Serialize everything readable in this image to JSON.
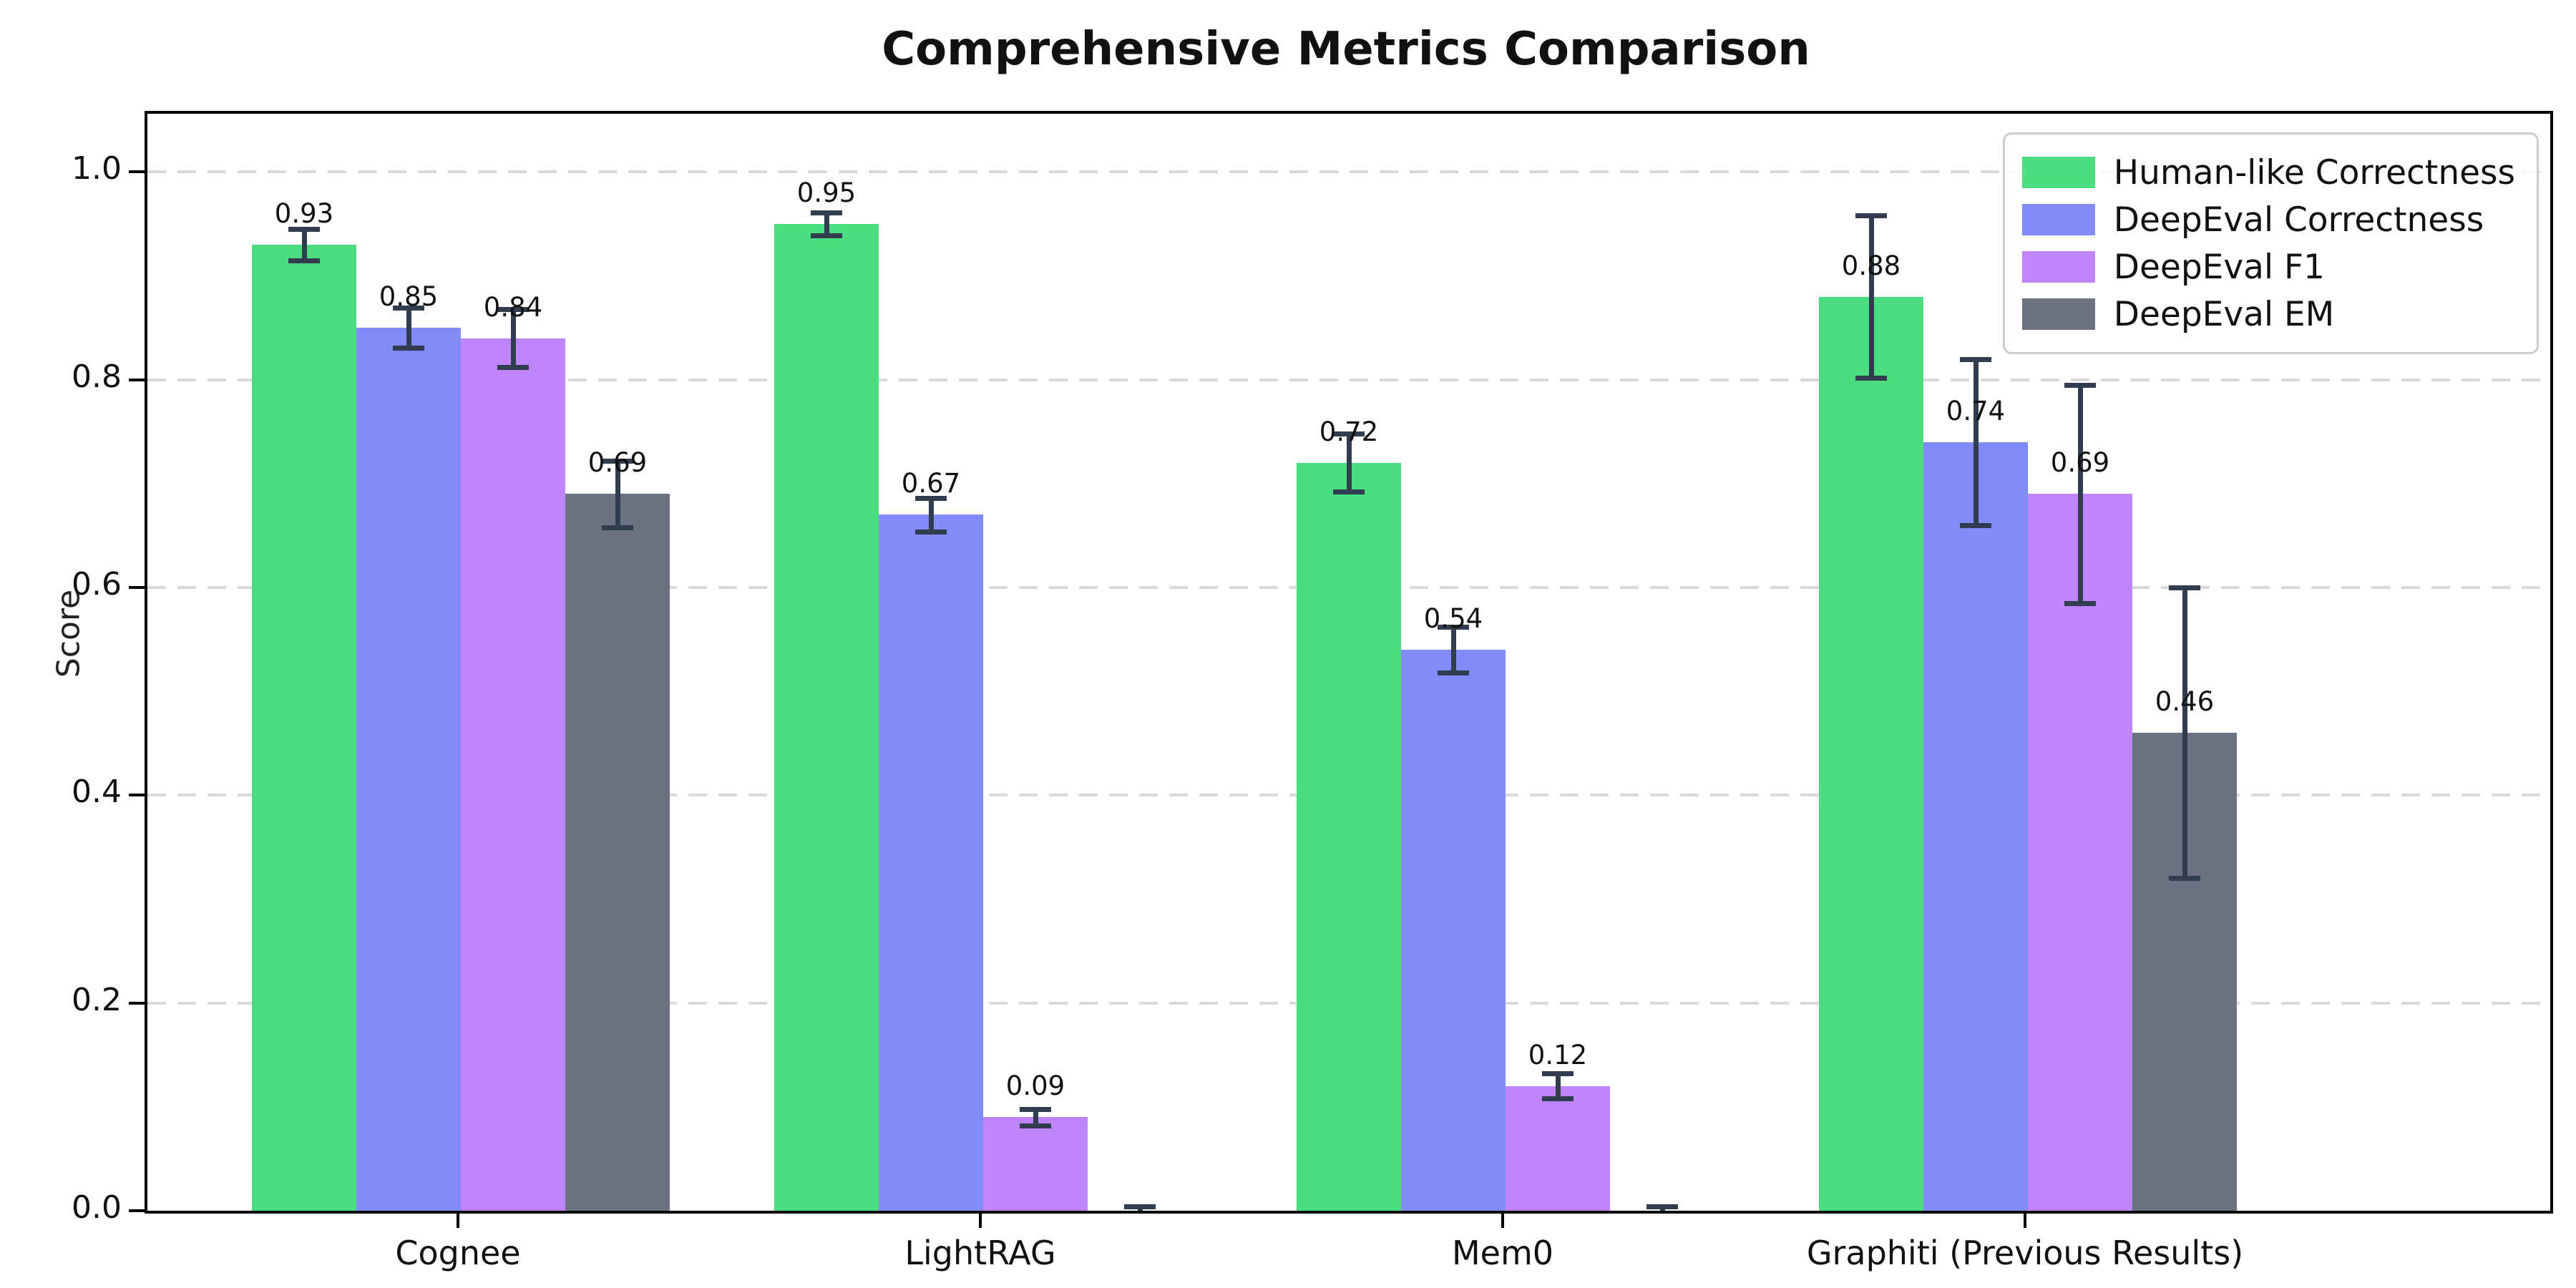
{
  "figure": {
    "background_color": "#ffffff",
    "axes_border_color": "#000000",
    "gridline_color": "#d9d9d9",
    "gridline_style": "dashed",
    "error_bar_color": "#313c4e"
  },
  "chart_data": {
    "type": "bar",
    "title": "Comprehensive Metrics Comparison",
    "xlabel": "",
    "ylabel": "Score",
    "ylim": [
      0,
      1.056
    ],
    "yticks": [
      0.0,
      0.2,
      0.4,
      0.6,
      0.8,
      1.0
    ],
    "ytick_labels": [
      "0.0",
      "0.2",
      "0.4",
      "0.6",
      "0.8",
      "1.0"
    ],
    "grid": "horizontal dashed gridlines at each y tick",
    "legend_position": "upper-right",
    "bar_value_labels_decimals": 2,
    "categories": [
      "Cognee",
      "LightRAG",
      "Mem0",
      "Graphiti (Previous Results)"
    ],
    "series": [
      {
        "name": "Human-like Correctness",
        "color": "#4ade80",
        "values": [
          0.93,
          0.95,
          0.72,
          0.88
        ],
        "errors": [
          0.015,
          0.011,
          0.028,
          0.078
        ]
      },
      {
        "name": "DeepEval Correctness",
        "color": "#818cf8",
        "values": [
          0.85,
          0.67,
          0.54,
          0.74
        ],
        "errors": [
          0.019,
          0.016,
          0.022,
          0.08
        ]
      },
      {
        "name": "DeepEval F1",
        "color": "#c084fc",
        "values": [
          0.84,
          0.09,
          0.12,
          0.69
        ],
        "errors": [
          0.028,
          0.008,
          0.012,
          0.105
        ]
      },
      {
        "name": "DeepEval EM",
        "color": "#6b7280",
        "values": [
          0.69,
          0.0,
          0.0,
          0.46
        ],
        "errors": [
          0.032,
          0.004,
          0.004,
          0.14
        ]
      }
    ]
  }
}
